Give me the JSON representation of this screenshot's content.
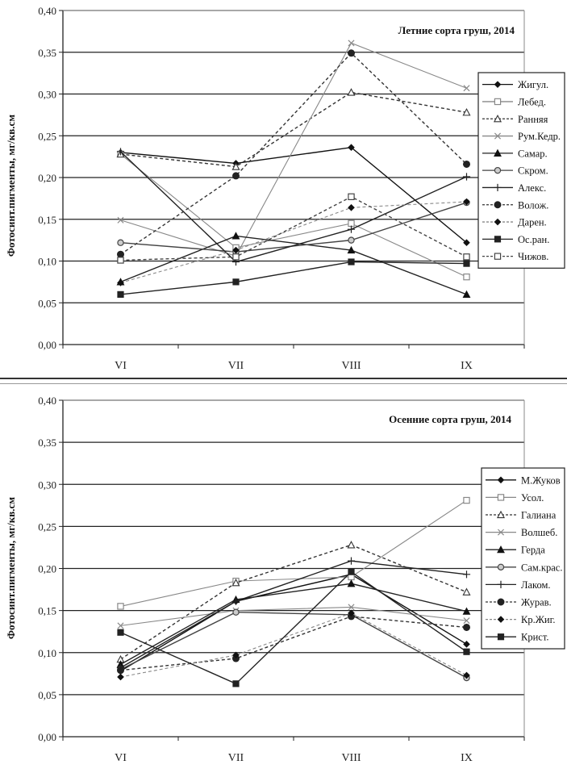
{
  "chart_data": [
    {
      "type": "line",
      "title": "Летние сорта груш, 2014",
      "xlabel": "",
      "ylabel": "Фотосинт.пигменты, мг/кв.см",
      "categories": [
        "VI",
        "VII",
        "VIII",
        "IX"
      ],
      "yticks": [
        "0,00",
        "0,05",
        "0,10",
        "0,15",
        "0,20",
        "0,25",
        "0,30",
        "0,35",
        "0,40"
      ],
      "ylim": [
        0,
        0.4
      ],
      "grid": true,
      "legend_position": "right",
      "series": [
        {
          "name": "Жигул.",
          "values": [
            0.23,
            0.217,
            0.236,
            0.122
          ],
          "marker": "diamond-filled",
          "dash": "solid",
          "color": "#111111"
        },
        {
          "name": "Лебед.",
          "values": [
            0.228,
            0.116,
            0.145,
            0.081
          ],
          "marker": "square-open",
          "dash": "solid",
          "color": "#888888"
        },
        {
          "name": "Ранняя",
          "values": [
            0.228,
            0.213,
            0.302,
            0.278
          ],
          "marker": "triangle-open",
          "dash": "dashed",
          "color": "#333333"
        },
        {
          "name": "Рум.Кедр.",
          "values": [
            0.149,
            0.106,
            0.361,
            0.307
          ],
          "marker": "x",
          "dash": "solid",
          "color": "#888888"
        },
        {
          "name": "Самар.",
          "values": [
            0.075,
            0.13,
            0.113,
            0.06
          ],
          "marker": "triangle-filled",
          "dash": "solid",
          "color": "#222222"
        },
        {
          "name": "Скром.",
          "values": [
            0.122,
            0.111,
            0.125,
            0.17
          ],
          "marker": "circle-open",
          "dash": "solid",
          "color": "#444444"
        },
        {
          "name": "Алекс.",
          "values": [
            0.231,
            0.099,
            0.138,
            0.201
          ],
          "marker": "plus",
          "dash": "solid",
          "color": "#222222"
        },
        {
          "name": "Волож.",
          "values": [
            0.108,
            0.202,
            0.349,
            0.216
          ],
          "marker": "circle-filled",
          "dash": "dashed",
          "color": "#333333"
        },
        {
          "name": "Дарен.",
          "values": [
            0.074,
            0.113,
            0.164,
            0.171
          ],
          "marker": "diamond-filled",
          "dash": "dashed",
          "color": "#888888"
        },
        {
          "name": "Ос.ран.",
          "values": [
            0.06,
            0.075,
            0.099,
            0.097
          ],
          "marker": "square-filled",
          "dash": "solid",
          "color": "#222222"
        },
        {
          "name": "Чижов.",
          "values": [
            0.101,
            0.105,
            0.177,
            0.105
          ],
          "marker": "square-open",
          "dash": "dashed",
          "color": "#444444"
        }
      ]
    },
    {
      "type": "line",
      "title": "Осенние сорта груш, 2014",
      "xlabel": "",
      "ylabel": "Фотосинт.пигменты, мг/кв.см",
      "categories": [
        "VI",
        "VII",
        "VIII",
        "IX"
      ],
      "yticks": [
        "0,00",
        "0,05",
        "0,10",
        "0,15",
        "0,20",
        "0,25",
        "0,30",
        "0,35",
        "0,40"
      ],
      "ylim": [
        0,
        0.4
      ],
      "grid": true,
      "legend_position": "right",
      "series": [
        {
          "name": "М.Жуков",
          "values": [
            0.078,
            0.161,
            0.193,
            0.11
          ],
          "marker": "diamond-filled",
          "dash": "solid",
          "color": "#111111"
        },
        {
          "name": "Усол.",
          "values": [
            0.155,
            0.185,
            0.19,
            0.281
          ],
          "marker": "square-open",
          "dash": "solid",
          "color": "#888888"
        },
        {
          "name": "Галиана",
          "values": [
            0.092,
            0.183,
            0.228,
            0.172
          ],
          "marker": "triangle-open",
          "dash": "dashed",
          "color": "#333333"
        },
        {
          "name": "Волшеб.",
          "values": [
            0.132,
            0.15,
            0.154,
            0.138
          ],
          "marker": "x",
          "dash": "solid",
          "color": "#888888"
        },
        {
          "name": "Герда",
          "values": [
            0.086,
            0.163,
            0.182,
            0.149
          ],
          "marker": "triangle-filled",
          "dash": "solid",
          "color": "#222222"
        },
        {
          "name": "Сам.крас.",
          "values": [
            0.08,
            0.148,
            0.145,
            0.07
          ],
          "marker": "circle-open",
          "dash": "solid",
          "color": "#444444"
        },
        {
          "name": "Лаком.",
          "values": [
            0.082,
            0.161,
            0.209,
            0.193
          ],
          "marker": "plus",
          "dash": "solid",
          "color": "#222222"
        },
        {
          "name": "Журав.",
          "values": [
            0.079,
            0.093,
            0.143,
            0.13
          ],
          "marker": "circle-filled",
          "dash": "dashed",
          "color": "#333333"
        },
        {
          "name": "Кр.Жиг.",
          "values": [
            0.071,
            0.097,
            0.147,
            0.073
          ],
          "marker": "diamond-filled",
          "dash": "dashed",
          "color": "#888888"
        },
        {
          "name": "Крист.",
          "values": [
            0.124,
            0.063,
            0.196,
            0.101
          ],
          "marker": "square-filled",
          "dash": "solid",
          "color": "#222222"
        }
      ]
    }
  ]
}
